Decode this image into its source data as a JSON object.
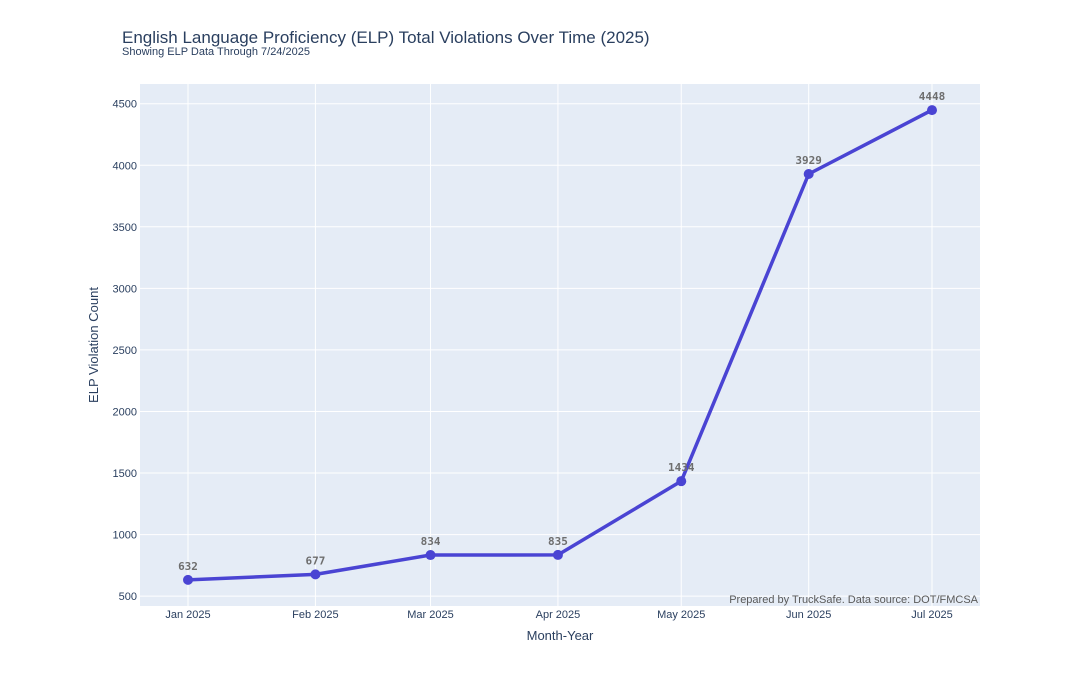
{
  "colors": {
    "plot_background": "#e5ecf6",
    "grid": "#ffffff",
    "line": "#4a44d3",
    "marker": "#4a44d3",
    "text": "#2a3f5f"
  },
  "chart_data": {
    "type": "line",
    "title": "English Language Proficiency (ELP) Total Violations Over Time (2025)",
    "subtitle": "Showing ELP Data Through 7/24/2025",
    "xlabel": "Month-Year",
    "ylabel": "ELP Violation Count",
    "ylim": [
      420,
      4660
    ],
    "yticks": [
      500,
      1000,
      1500,
      2000,
      2500,
      3000,
      3500,
      4000,
      4500
    ],
    "grid": true,
    "x": [
      "2025-01-01",
      "2025-02-01",
      "2025-03-01",
      "2025-04-01",
      "2025-05-01",
      "2025-06-01",
      "2025-07-01"
    ],
    "categories": [
      "Jan 2025",
      "Feb 2025",
      "Mar 2025",
      "Apr 2025",
      "May 2025",
      "Jun 2025",
      "Jul 2025"
    ],
    "series": [
      {
        "values": [
          632,
          677,
          834,
          835,
          1434,
          3929,
          4448
        ],
        "labels": [
          "632",
          "677",
          "834",
          "835",
          "1434",
          "3929",
          "4448"
        ]
      }
    ],
    "annotation": "Prepared by TruckSafe. Data source: DOT/FMCSA"
  }
}
